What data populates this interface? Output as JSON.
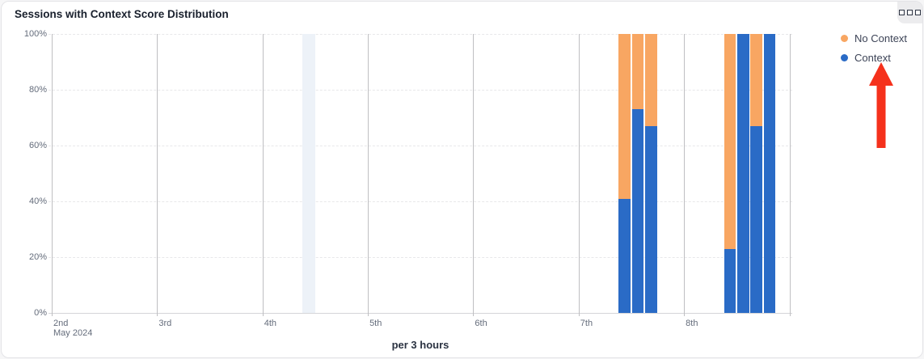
{
  "header": {
    "title": "Sessions with Context Score Distribution"
  },
  "menu": {
    "icon": "grid-dots-icon"
  },
  "legend": {
    "items": [
      {
        "label": "No Context",
        "color": "#f8a662"
      },
      {
        "label": "Context",
        "color": "#2a6bc6"
      }
    ]
  },
  "annotation": {
    "shape": "up-arrow",
    "color": "#f5311c",
    "points_to": "Context"
  },
  "chart_data": {
    "type": "bar",
    "variant": "stacked-percent-column",
    "title": "Sessions with Context Score Distribution",
    "xlabel": "per 3 hours",
    "ylabel": "",
    "ylim": [
      0,
      100
    ],
    "y_tick_labels": [
      "100%",
      "80%",
      "60%",
      "40%",
      "20%",
      "0%"
    ],
    "x_tick_labels": [
      "2nd",
      "3rd",
      "4th",
      "5th",
      "6th",
      "7th",
      "8th"
    ],
    "x_axis_secondary_label": "May 2024",
    "grid": {
      "horizontal": "dashed",
      "vertical": "solid"
    },
    "legend_position": "top-right",
    "series_colors": {
      "Context": "#2a6bc6",
      "No Context": "#f8a662"
    },
    "bars": [
      {
        "day": "7th",
        "day_index": 5,
        "hour": 9,
        "context_pct": 41,
        "no_context_pct": 59
      },
      {
        "day": "7th",
        "day_index": 5,
        "hour": 12,
        "context_pct": 73,
        "no_context_pct": 27
      },
      {
        "day": "7th",
        "day_index": 5,
        "hour": 15,
        "context_pct": 67,
        "no_context_pct": 33
      },
      {
        "day": "8th",
        "day_index": 6,
        "hour": 9,
        "context_pct": 23,
        "no_context_pct": 77
      },
      {
        "day": "8th",
        "day_index": 6,
        "hour": 12,
        "context_pct": 100,
        "no_context_pct": 0
      },
      {
        "day": "8th",
        "day_index": 6,
        "hour": 15,
        "context_pct": 67,
        "no_context_pct": 33
      },
      {
        "day": "8th",
        "day_index": 6,
        "hour": 18,
        "context_pct": 100,
        "no_context_pct": 0
      }
    ],
    "highlight_band": {
      "day": "4th",
      "day_index": 2,
      "hour": 9,
      "color": "#edf2f8"
    }
  }
}
